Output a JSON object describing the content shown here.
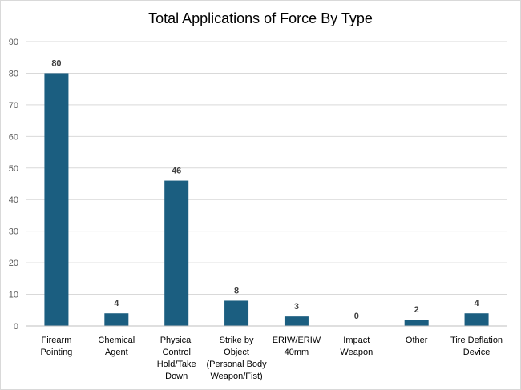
{
  "chart_data": {
    "type": "bar",
    "title": "Total Applications of Force By Type",
    "categories": [
      [
        "Firearm",
        "Pointing"
      ],
      [
        "Chemical",
        "Agent"
      ],
      [
        "Physical",
        "Control",
        "Hold/Take",
        "Down"
      ],
      [
        "Strike by",
        "Object",
        "(Personal Body",
        "Weapon/Fist)"
      ],
      [
        "ERIW/ERIW",
        "40mm"
      ],
      [
        "Impact",
        "Weapon"
      ],
      [
        "Other"
      ],
      [
        "Tire Deflation",
        "Device"
      ]
    ],
    "values": [
      80,
      4,
      46,
      8,
      3,
      0,
      2,
      4
    ],
    "ylim": [
      0,
      90
    ],
    "yticks": [
      0,
      10,
      20,
      30,
      40,
      50,
      60,
      70,
      80,
      90
    ],
    "grid": true,
    "legend": "none",
    "colors": {
      "bar": "#1b5e80",
      "grid": "#d9d9d9",
      "axis": "#bfbfbf"
    }
  }
}
